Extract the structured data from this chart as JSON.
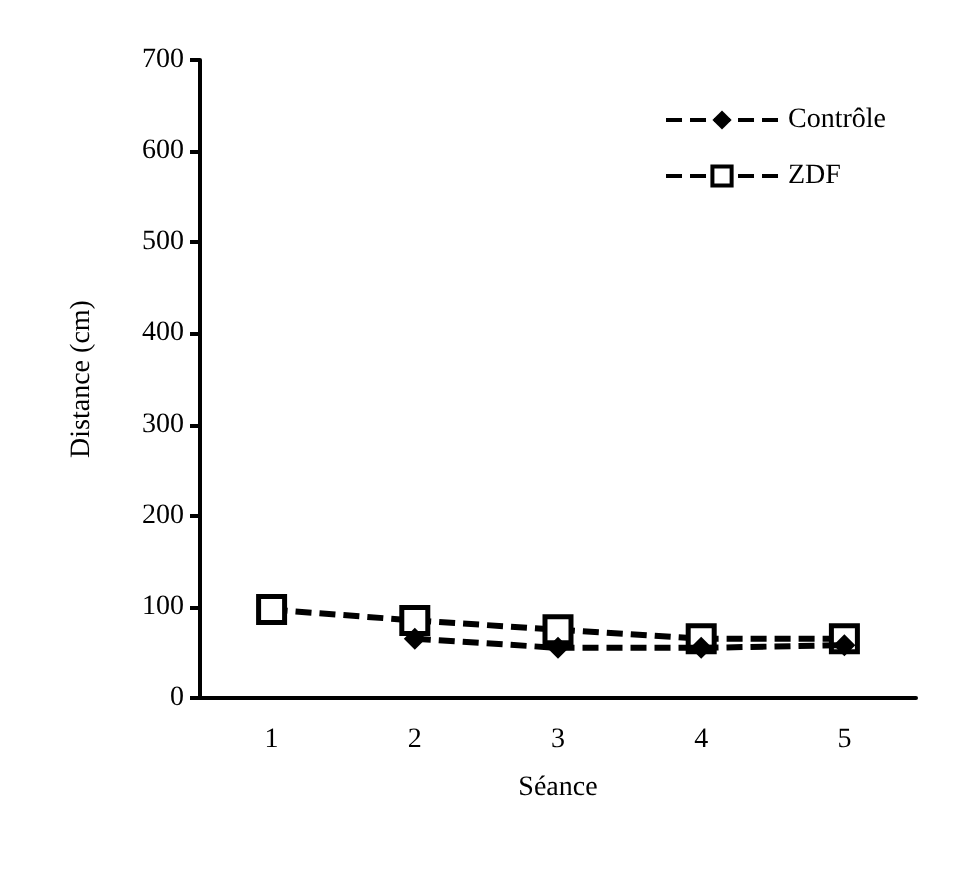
{
  "chart_data": {
    "type": "line",
    "xlabel": "Séance",
    "ylabel": "Distance (cm)",
    "categories": [
      "1",
      "2",
      "3",
      "4",
      "5"
    ],
    "ylim": [
      0,
      700
    ],
    "yticks": [
      0,
      100,
      200,
      300,
      400,
      500,
      600,
      700
    ],
    "grid": false,
    "legend": "top right",
    "line_style": "dashed",
    "series": [
      {
        "name": "Contrôle",
        "color": "#000000",
        "marker": "diamond",
        "values": [
          null,
          65,
          55,
          55,
          58
        ]
      },
      {
        "name": "ZDF",
        "color": "#000000",
        "marker": "square",
        "values": [
          97,
          85,
          75,
          65,
          65
        ]
      }
    ]
  }
}
